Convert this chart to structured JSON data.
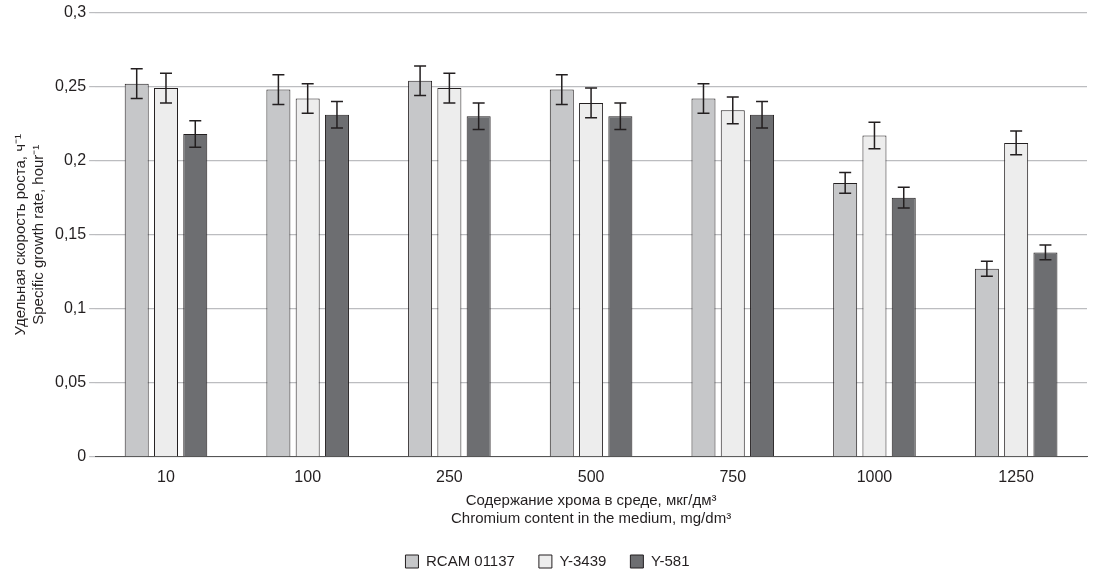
{
  "chart_data": {
    "type": "bar",
    "categories": [
      "10",
      "100",
      "250",
      "500",
      "750",
      "1000",
      "1250"
    ],
    "xlabel": "Содержание хрома в среде, мкг/дм³\nChromium content in the medium, mg/dm³",
    "ylabel": "Удельная скорость роста, ч⁻¹\nSpecific growth rate, hour⁻¹",
    "ylim": [
      0,
      0.3
    ],
    "yticks": [
      {
        "value": 0,
        "label": "0"
      },
      {
        "value": 0.05,
        "label": "0,05"
      },
      {
        "value": 0.1,
        "label": "0,1"
      },
      {
        "value": 0.15,
        "label": "0,15"
      },
      {
        "value": 0.2,
        "label": "0,2"
      },
      {
        "value": 0.25,
        "label": "0,25"
      },
      {
        "value": 0.3,
        "label": "0,3"
      }
    ],
    "grid": "y",
    "legend": "bottom",
    "series": [
      {
        "name": "RCAM 01137",
        "color": "#c6c7c9",
        "values": [
          0.252,
          0.248,
          0.254,
          0.248,
          0.242,
          0.185,
          0.127
        ],
        "errors": [
          0.01,
          0.01,
          0.01,
          0.01,
          0.01,
          0.007,
          0.005
        ]
      },
      {
        "name": "Y-3439",
        "color": "#ededed",
        "values": [
          0.249,
          0.242,
          0.249,
          0.239,
          0.234,
          0.217,
          0.212
        ],
        "errors": [
          0.01,
          0.01,
          0.01,
          0.01,
          0.009,
          0.009,
          0.008
        ]
      },
      {
        "name": "Y-581",
        "color": "#6d6e71",
        "values": [
          0.218,
          0.231,
          0.23,
          0.23,
          0.231,
          0.175,
          0.138
        ],
        "errors": [
          0.009,
          0.009,
          0.009,
          0.009,
          0.009,
          0.007,
          0.005
        ]
      }
    ]
  }
}
